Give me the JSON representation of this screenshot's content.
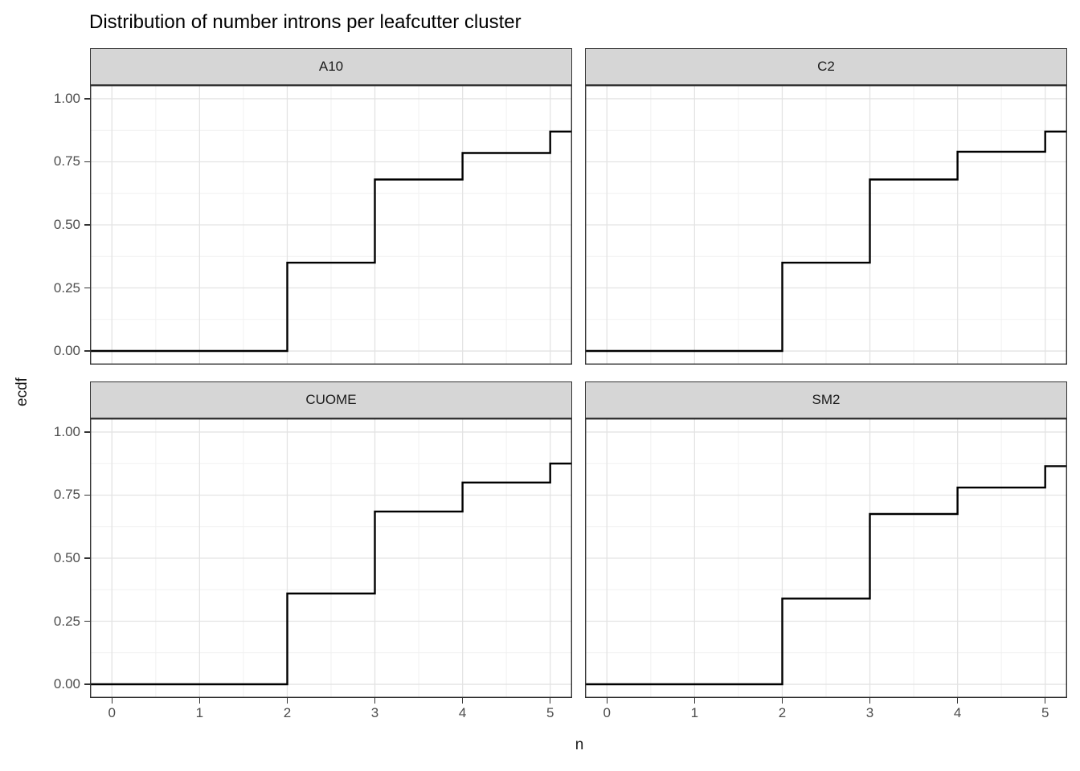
{
  "chart_data": {
    "type": "line",
    "subtype": "ecdf-step-faceted",
    "title": "Distribution of number introns per leafcutter cluster",
    "xlabel": "n",
    "ylabel": "ecdf",
    "facets": [
      {
        "label": "A10",
        "step_x": [
          2,
          3,
          4,
          5
        ],
        "step_y": [
          0.35,
          0.68,
          0.785,
          0.87
        ]
      },
      {
        "label": "C2",
        "step_x": [
          2,
          3,
          4,
          5
        ],
        "step_y": [
          0.35,
          0.68,
          0.79,
          0.87
        ]
      },
      {
        "label": "CUOME",
        "step_x": [
          2,
          3,
          4,
          5
        ],
        "step_y": [
          0.36,
          0.685,
          0.8,
          0.875
        ]
      },
      {
        "label": "SM2",
        "step_x": [
          2,
          3,
          4,
          5
        ],
        "step_y": [
          0.34,
          0.675,
          0.78,
          0.865
        ]
      }
    ],
    "start_value": 0,
    "x_ticks": [
      {
        "label": "0",
        "value": 0
      },
      {
        "label": "1",
        "value": 1
      },
      {
        "label": "2",
        "value": 2
      },
      {
        "label": "3",
        "value": 3
      },
      {
        "label": "4",
        "value": 4
      },
      {
        "label": "5",
        "value": 5
      }
    ],
    "y_ticks": [
      {
        "label": "1.00",
        "value": 1.0
      },
      {
        "label": "0.75",
        "value": 0.75
      },
      {
        "label": "0.50",
        "value": 0.5
      },
      {
        "label": "0.25",
        "value": 0.25
      },
      {
        "label": "0.00",
        "value": 0.0
      }
    ],
    "xlim": [
      -0.25,
      5.25
    ],
    "ylim": [
      -0.054,
      1.054
    ],
    "grid": {
      "major_x": [
        0,
        1,
        2,
        3,
        4,
        5
      ],
      "minor_x": [
        0.5,
        1.5,
        2.5,
        3.5,
        4.5
      ],
      "major_y": [
        0,
        0.25,
        0.5,
        0.75,
        1.0
      ],
      "minor_y": [
        0.125,
        0.375,
        0.625,
        0.875
      ]
    },
    "legend": "none",
    "colors": {
      "line": "#000000",
      "panel_border": "#333333",
      "strip_fill": "#d6d6d6",
      "grid_major": "#e3e3e3",
      "grid_minor": "#f1f1f1",
      "axis_text": "#4d4d4d",
      "title_text": "#000000",
      "tick_mark": "#333333",
      "background": "#ffffff"
    }
  }
}
